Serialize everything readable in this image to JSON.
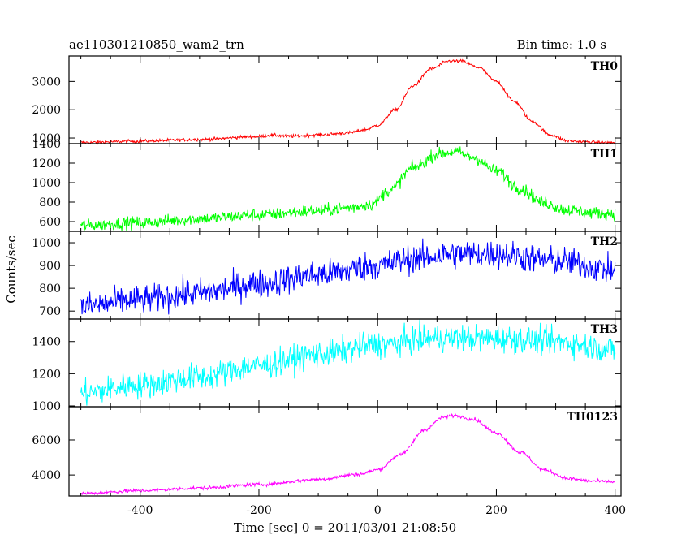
{
  "chart_data": {
    "type": "line",
    "title": "ae110301210850_wam2_trn",
    "bin_time_label": "Bin time: 1.0 s",
    "xlabel": "Time [sec] 0 = 2011/03/01 21:08:50",
    "ylabel": "Counts/sec",
    "xlim": [
      -520,
      410
    ],
    "x_ticks": [
      -400,
      -200,
      0,
      200,
      400
    ],
    "grid": false,
    "panels": [
      {
        "name": "TH0",
        "color": "#ff0000",
        "ylim": [
          800,
          3900
        ],
        "y_ticks": [
          1000,
          2000,
          3000
        ],
        "points": [
          {
            "x": -500,
            "y": 840
          },
          {
            "x": -400,
            "y": 890
          },
          {
            "x": -300,
            "y": 950
          },
          {
            "x": -200,
            "y": 1050
          },
          {
            "x": -180,
            "y": 1100
          },
          {
            "x": -150,
            "y": 1060
          },
          {
            "x": -100,
            "y": 1110
          },
          {
            "x": -50,
            "y": 1180
          },
          {
            "x": -20,
            "y": 1300
          },
          {
            "x": 0,
            "y": 1450
          },
          {
            "x": 30,
            "y": 2000
          },
          {
            "x": 60,
            "y": 2850
          },
          {
            "x": 90,
            "y": 3450
          },
          {
            "x": 120,
            "y": 3720
          },
          {
            "x": 140,
            "y": 3720
          },
          {
            "x": 170,
            "y": 3500
          },
          {
            "x": 200,
            "y": 3000
          },
          {
            "x": 230,
            "y": 2300
          },
          {
            "x": 260,
            "y": 1600
          },
          {
            "x": 290,
            "y": 1120
          },
          {
            "x": 320,
            "y": 900
          },
          {
            "x": 350,
            "y": 860
          },
          {
            "x": 400,
            "y": 840
          }
        ],
        "noise": 40
      },
      {
        "name": "TH1",
        "color": "#00ff00",
        "ylim": [
          500,
          1400
        ],
        "y_ticks": [
          600,
          800,
          1000,
          1200,
          1400
        ],
        "points": [
          {
            "x": -500,
            "y": 560
          },
          {
            "x": -400,
            "y": 590
          },
          {
            "x": -300,
            "y": 630
          },
          {
            "x": -200,
            "y": 670
          },
          {
            "x": -100,
            "y": 710
          },
          {
            "x": -50,
            "y": 740
          },
          {
            "x": -10,
            "y": 780
          },
          {
            "x": 20,
            "y": 920
          },
          {
            "x": 60,
            "y": 1150
          },
          {
            "x": 100,
            "y": 1290
          },
          {
            "x": 130,
            "y": 1320
          },
          {
            "x": 160,
            "y": 1260
          },
          {
            "x": 200,
            "y": 1120
          },
          {
            "x": 240,
            "y": 940
          },
          {
            "x": 280,
            "y": 790
          },
          {
            "x": 320,
            "y": 720
          },
          {
            "x": 360,
            "y": 690
          },
          {
            "x": 400,
            "y": 680
          }
        ],
        "noise": 45
      },
      {
        "name": "TH2",
        "color": "#0000ff",
        "ylim": [
          665,
          1050
        ],
        "y_ticks": [
          700,
          800,
          900,
          1000
        ],
        "points": [
          {
            "x": -500,
            "y": 720
          },
          {
            "x": -400,
            "y": 750
          },
          {
            "x": -300,
            "y": 780
          },
          {
            "x": -200,
            "y": 820
          },
          {
            "x": -100,
            "y": 860
          },
          {
            "x": 0,
            "y": 900
          },
          {
            "x": 60,
            "y": 930
          },
          {
            "x": 120,
            "y": 950
          },
          {
            "x": 200,
            "y": 950
          },
          {
            "x": 300,
            "y": 920
          },
          {
            "x": 400,
            "y": 880
          }
        ],
        "noise": 45
      },
      {
        "name": "TH3",
        "color": "#00ffff",
        "ylim": [
          995,
          1540
        ],
        "y_ticks": [
          1000,
          1200,
          1400
        ],
        "points": [
          {
            "x": -500,
            "y": 1080
          },
          {
            "x": -400,
            "y": 1130
          },
          {
            "x": -300,
            "y": 1180
          },
          {
            "x": -200,
            "y": 1250
          },
          {
            "x": -100,
            "y": 1320
          },
          {
            "x": 0,
            "y": 1380
          },
          {
            "x": 100,
            "y": 1420
          },
          {
            "x": 200,
            "y": 1420
          },
          {
            "x": 300,
            "y": 1400
          },
          {
            "x": 400,
            "y": 1350
          }
        ],
        "noise": 60
      },
      {
        "name": "TH0123",
        "color": "#ff00ff",
        "ylim": [
          2800,
          7900
        ],
        "y_ticks": [
          4000,
          6000
        ],
        "points": [
          {
            "x": -500,
            "y": 2950
          },
          {
            "x": -400,
            "y": 3100
          },
          {
            "x": -300,
            "y": 3250
          },
          {
            "x": -200,
            "y": 3450
          },
          {
            "x": -100,
            "y": 3750
          },
          {
            "x": -30,
            "y": 4050
          },
          {
            "x": 0,
            "y": 4300
          },
          {
            "x": 40,
            "y": 5200
          },
          {
            "x": 80,
            "y": 6600
          },
          {
            "x": 110,
            "y": 7300
          },
          {
            "x": 130,
            "y": 7400
          },
          {
            "x": 160,
            "y": 7200
          },
          {
            "x": 200,
            "y": 6400
          },
          {
            "x": 240,
            "y": 5300
          },
          {
            "x": 280,
            "y": 4300
          },
          {
            "x": 320,
            "y": 3800
          },
          {
            "x": 360,
            "y": 3650
          },
          {
            "x": 400,
            "y": 3600
          }
        ],
        "noise": 70
      }
    ]
  }
}
